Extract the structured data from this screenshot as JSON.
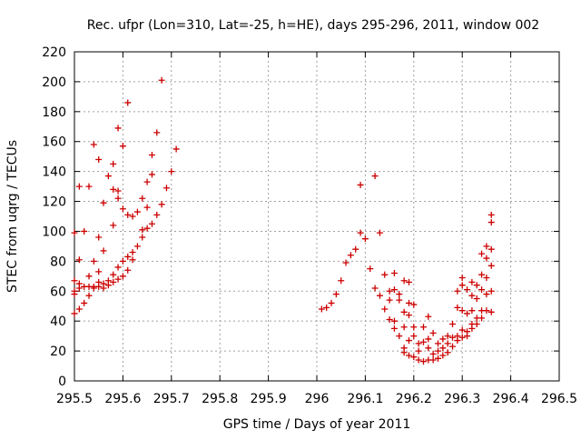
{
  "chart_data": {
    "type": "scatter",
    "title": "Rec. ufpr (Lon=310, Lat=-25, h=HE), days 295-296, 2011, window 002",
    "xlabel": "GPS time / Days of year 2011",
    "ylabel": "STEC from uqrg / TECUs",
    "xlim": [
      295.5,
      296.5
    ],
    "ylim": [
      0,
      220
    ],
    "xticks": [
      295.5,
      295.6,
      295.7,
      295.8,
      295.9,
      296,
      296.1,
      296.2,
      296.3,
      296.4,
      296.5
    ],
    "xtick_labels": [
      "295.5",
      "295.6",
      "295.7",
      "295.8",
      "295.9",
      "296",
      "296.1",
      "296.2",
      "296.3",
      "296.4",
      "296.5"
    ],
    "yticks": [
      0,
      20,
      40,
      60,
      80,
      100,
      120,
      140,
      160,
      180,
      200,
      220
    ],
    "ytick_labels": [
      "0",
      "20",
      "40",
      "60",
      "80",
      "100",
      "120",
      "140",
      "160",
      "180",
      "200",
      "220"
    ],
    "grid": true,
    "marker": "+",
    "color": "#cc0000",
    "series": [
      {
        "points": [
          [
            295.5,
            99
          ],
          [
            295.5,
            67
          ],
          [
            295.5,
            60
          ],
          [
            295.5,
            58
          ],
          [
            295.5,
            45
          ],
          [
            295.51,
            81
          ],
          [
            295.51,
            130
          ],
          [
            295.51,
            65
          ],
          [
            295.51,
            62
          ],
          [
            295.51,
            48
          ],
          [
            295.52,
            100
          ],
          [
            295.52,
            63
          ],
          [
            295.52,
            52
          ],
          [
            295.53,
            130
          ],
          [
            295.53,
            70
          ],
          [
            295.53,
            63
          ],
          [
            295.53,
            57
          ],
          [
            295.54,
            158
          ],
          [
            295.54,
            80
          ],
          [
            295.54,
            63
          ],
          [
            295.54,
            62
          ],
          [
            295.55,
            148
          ],
          [
            295.55,
            96
          ],
          [
            295.55,
            73
          ],
          [
            295.55,
            66
          ],
          [
            295.55,
            63
          ],
          [
            295.56,
            119
          ],
          [
            295.56,
            87
          ],
          [
            295.56,
            65
          ],
          [
            295.56,
            62
          ],
          [
            295.57,
            137
          ],
          [
            295.57,
            67
          ],
          [
            295.57,
            64
          ],
          [
            295.58,
            145
          ],
          [
            295.58,
            128
          ],
          [
            295.58,
            104
          ],
          [
            295.58,
            71
          ],
          [
            295.58,
            66
          ],
          [
            295.59,
            169
          ],
          [
            295.59,
            127
          ],
          [
            295.59,
            122
          ],
          [
            295.59,
            76
          ],
          [
            295.59,
            68
          ],
          [
            295.6,
            157
          ],
          [
            295.6,
            115
          ],
          [
            295.6,
            80
          ],
          [
            295.6,
            70
          ],
          [
            295.61,
            186
          ],
          [
            295.61,
            111
          ],
          [
            295.61,
            83
          ],
          [
            295.61,
            74
          ],
          [
            295.62,
            110
          ],
          [
            295.62,
            86
          ],
          [
            295.62,
            81
          ],
          [
            295.63,
            113
          ],
          [
            295.63,
            90
          ],
          [
            295.64,
            122
          ],
          [
            295.64,
            101
          ],
          [
            295.64,
            96
          ],
          [
            295.65,
            133
          ],
          [
            295.65,
            116
          ],
          [
            295.65,
            102
          ],
          [
            295.66,
            151
          ],
          [
            295.66,
            138
          ],
          [
            295.66,
            105
          ],
          [
            295.67,
            166
          ],
          [
            295.67,
            111
          ],
          [
            295.68,
            201
          ],
          [
            295.68,
            118
          ],
          [
            295.69,
            129
          ],
          [
            295.7,
            140
          ],
          [
            295.71,
            155
          ],
          [
            296.01,
            48
          ],
          [
            296.02,
            49
          ],
          [
            296.03,
            52
          ],
          [
            296.04,
            58
          ],
          [
            296.05,
            67
          ],
          [
            296.06,
            79
          ],
          [
            296.07,
            84
          ],
          [
            296.08,
            88
          ],
          [
            296.09,
            131
          ],
          [
            296.09,
            99
          ],
          [
            296.1,
            95
          ],
          [
            296.11,
            75
          ],
          [
            296.12,
            137
          ],
          [
            296.12,
            62
          ],
          [
            296.13,
            99
          ],
          [
            296.13,
            57
          ],
          [
            296.14,
            71
          ],
          [
            296.14,
            48
          ],
          [
            296.15,
            60
          ],
          [
            296.15,
            54
          ],
          [
            296.15,
            41
          ],
          [
            296.16,
            72
          ],
          [
            296.16,
            61
          ],
          [
            296.16,
            40
          ],
          [
            296.16,
            35
          ],
          [
            296.17,
            58
          ],
          [
            296.17,
            54
          ],
          [
            296.17,
            30
          ],
          [
            296.18,
            67
          ],
          [
            296.18,
            46
          ],
          [
            296.18,
            36
          ],
          [
            296.18,
            22
          ],
          [
            296.18,
            19
          ],
          [
            296.19,
            66
          ],
          [
            296.19,
            52
          ],
          [
            296.19,
            44
          ],
          [
            296.19,
            27
          ],
          [
            296.19,
            17
          ],
          [
            296.2,
            51
          ],
          [
            296.2,
            36
          ],
          [
            296.2,
            30
          ],
          [
            296.2,
            16
          ],
          [
            296.21,
            25
          ],
          [
            296.21,
            20
          ],
          [
            296.21,
            14
          ],
          [
            296.22,
            36
          ],
          [
            296.22,
            26
          ],
          [
            296.22,
            13
          ],
          [
            296.23,
            43
          ],
          [
            296.23,
            28
          ],
          [
            296.23,
            22
          ],
          [
            296.23,
            14
          ],
          [
            296.24,
            32
          ],
          [
            296.24,
            18
          ],
          [
            296.24,
            14
          ],
          [
            296.25,
            25
          ],
          [
            296.25,
            20
          ],
          [
            296.25,
            15
          ],
          [
            296.26,
            28
          ],
          [
            296.26,
            22
          ],
          [
            296.26,
            17
          ],
          [
            296.27,
            30
          ],
          [
            296.27,
            25
          ],
          [
            296.27,
            19
          ],
          [
            296.28,
            38
          ],
          [
            296.28,
            29
          ],
          [
            296.28,
            23
          ],
          [
            296.29,
            60
          ],
          [
            296.29,
            49
          ],
          [
            296.29,
            30
          ],
          [
            296.29,
            27
          ],
          [
            296.3,
            69
          ],
          [
            296.3,
            64
          ],
          [
            296.3,
            47
          ],
          [
            296.3,
            34
          ],
          [
            296.3,
            29
          ],
          [
            296.31,
            61
          ],
          [
            296.31,
            45
          ],
          [
            296.31,
            33
          ],
          [
            296.31,
            30
          ],
          [
            296.32,
            66
          ],
          [
            296.32,
            57
          ],
          [
            296.32,
            47
          ],
          [
            296.32,
            38
          ],
          [
            296.32,
            35
          ],
          [
            296.33,
            64
          ],
          [
            296.33,
            55
          ],
          [
            296.33,
            42
          ],
          [
            296.33,
            38
          ],
          [
            296.34,
            85
          ],
          [
            296.34,
            71
          ],
          [
            296.34,
            61
          ],
          [
            296.34,
            47
          ],
          [
            296.34,
            42
          ],
          [
            296.35,
            90
          ],
          [
            296.35,
            82
          ],
          [
            296.35,
            69
          ],
          [
            296.35,
            58
          ],
          [
            296.35,
            47
          ],
          [
            296.36,
            111
          ],
          [
            296.36,
            106
          ],
          [
            296.36,
            88
          ],
          [
            296.36,
            77
          ],
          [
            296.36,
            60
          ],
          [
            296.36,
            46
          ]
        ]
      }
    ]
  }
}
